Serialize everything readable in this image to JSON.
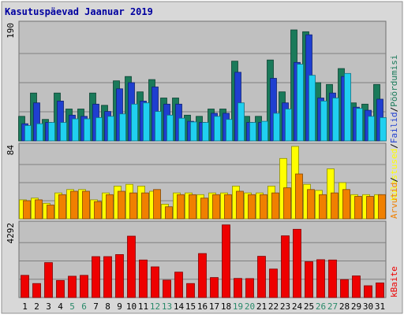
{
  "title": "Kasutuspäevad Jaanuar 2019",
  "colors": {
    "frame": "#d8d8d8",
    "plot_bg": "#c0c0c0",
    "grid": "#808080",
    "title": "#0000a0",
    "day_weekday": "#000000",
    "day_weekend": "#2a8a6a"
  },
  "chart_data": {
    "type": "bar",
    "x": [
      "1",
      "2",
      "3",
      "4",
      "5",
      "6",
      "7",
      "8",
      "9",
      "10",
      "11",
      "12",
      "13",
      "14",
      "15",
      "16",
      "17",
      "18",
      "19",
      "20",
      "21",
      "22",
      "23",
      "24",
      "25",
      "26",
      "27",
      "28",
      "29",
      "30",
      "31"
    ],
    "weekend_days": [
      "5",
      "6",
      "12",
      "13",
      "19",
      "20",
      "26",
      "27"
    ],
    "panels": [
      {
        "id": "top",
        "ymax_label": "190",
        "ymax": 190,
        "series": [
          {
            "name": "Pöördumisi",
            "color": "#1a7a5a",
            "values": [
              40,
              78,
              35,
              78,
              52,
              52,
              78,
              58,
              98,
              105,
              80,
              100,
              70,
              70,
              42,
              40,
              52,
              52,
              130,
              40,
              40,
              132,
              80,
              181,
              178,
              95,
              92,
              118,
              62,
              60,
              92
            ]
          },
          {
            "name": "Failid",
            "color": "#1f3fd0",
            "values": [
              28,
              62,
              30,
              65,
              42,
              40,
              60,
              48,
              85,
              95,
              65,
              88,
              60,
              60,
              32,
              30,
              45,
              45,
              112,
              30,
              30,
              102,
              62,
              128,
              173,
              70,
              78,
              105,
              55,
              50,
              68
            ]
          },
          {
            "name": "Lehekülgi",
            "color": "#20d0f0",
            "values": [
              25,
              28,
              30,
              30,
              36,
              36,
              38,
              40,
              44,
              60,
              62,
              48,
              42,
              37,
              31,
              30,
              40,
              35,
              62,
              30,
              32,
              45,
              52,
              125,
              107,
              65,
              70,
              110,
              53,
              40,
              38
            ]
          }
        ]
      },
      {
        "id": "middle",
        "ymax_label": "84",
        "ymax": 84,
        "series": [
          {
            "name": "Külastused",
            "color": "#ffff00",
            "values": [
              22,
              24,
              18,
              30,
              34,
              34,
              22,
              30,
              38,
              40,
              38,
              32,
              17,
              30,
              30,
              28,
              30,
              30,
              38,
              30,
              30,
              38,
              70,
              84,
              40,
              33,
              58,
              42,
              28,
              28,
              28
            ]
          },
          {
            "name": "Arvutid",
            "color": "#f08000",
            "values": [
              21,
              22,
              16,
              28,
              32,
              32,
              20,
              28,
              32,
              30,
              30,
              34,
              14,
              28,
              28,
              24,
              28,
              28,
              32,
              28,
              28,
              30,
              36,
              52,
              34,
              28,
              30,
              34,
              26,
              26,
              28
            ]
          }
        ]
      },
      {
        "id": "bottom",
        "ymax_label": "4292",
        "ymax": 4292,
        "series": [
          {
            "name": "kBaite",
            "color": "#ee0000",
            "values": [
              1300,
              820,
              2050,
              1000,
              1250,
              1300,
              2400,
              2400,
              2520,
              3600,
              2200,
              1800,
              1020,
              1490,
              820,
              2580,
              1170,
              4260,
              1120,
              1110,
              2420,
              1670,
              3620,
              4000,
              2100,
              2220,
              2200,
              1050,
              1270,
              690,
              860
            ]
          }
        ]
      }
    ]
  }
}
